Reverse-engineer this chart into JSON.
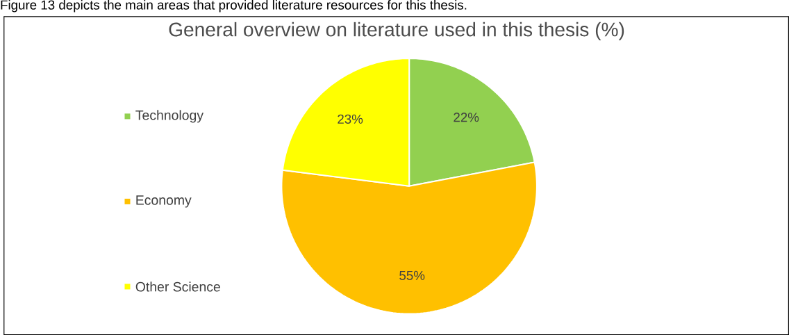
{
  "chart_data": {
    "type": "pie",
    "title": "General overview on literature used in this thesis (%)",
    "annotations": [
      "Figure 13 depicts the main areas that provided literature resources for this thesis."
    ],
    "categories": [
      "Technology",
      "Economy",
      "Other Science"
    ],
    "values": [
      22,
      55,
      23
    ],
    "value_labels": [
      "22%",
      "55%",
      "23%"
    ],
    "colors": [
      "#92d050",
      "#ffc000",
      "#ffff00"
    ],
    "legend": "left"
  }
}
